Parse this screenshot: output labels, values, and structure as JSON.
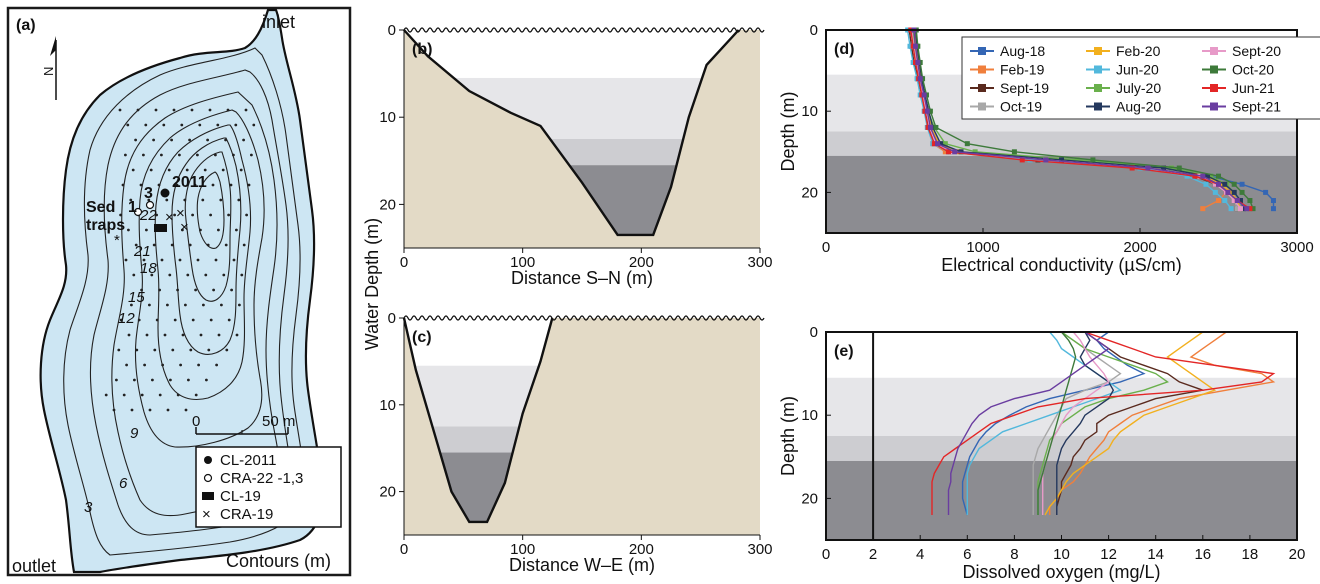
{
  "colors": {
    "lake": "#cde6f3",
    "sediment": "#e3dac6",
    "zone_light": "#e6e6e9",
    "zone_mid": "#cdcdd1",
    "zone_dark": "#8c8c91"
  },
  "panels": {
    "a": {
      "tag": "(a)",
      "inlet": "inlet",
      "outlet": "outlet",
      "contours_label": "Contours (m)",
      "contour_labels": [
        "3",
        "6",
        "9",
        "12",
        "15",
        "18",
        "21",
        "22"
      ],
      "north": "N",
      "scale_zero": "0",
      "scale_label": "50 m",
      "sed_traps_1": "Sed",
      "sed_traps_2": "traps",
      "site_2011": "2011",
      "site_1": "1",
      "site_3": "3",
      "legend": [
        "CL-2011",
        "CRA-22 -1,3",
        "CL-19",
        "CRA-19"
      ]
    },
    "b": {
      "tag": "(b)",
      "xlabel": "Distance S–N (m)",
      "xticks": [
        "0",
        "100",
        "200",
        "300"
      ],
      "yticks": [
        "0",
        "10",
        "20"
      ]
    },
    "c": {
      "tag": "(c)",
      "xlabel": "Distance W–E (m)",
      "xticks": [
        "0",
        "100",
        "200",
        "300"
      ],
      "yticks": [
        "0",
        "10",
        "20"
      ]
    },
    "bc_ylabel": "Water Depth (m)",
    "d": {
      "tag": "(d)",
      "xlabel": "Electrical conductivity (µS/cm)",
      "ylabel": "Depth (m)",
      "xticks": [
        "0",
        "1000",
        "2000",
        "3000"
      ],
      "yticks": [
        "0",
        "10",
        "20"
      ]
    },
    "e": {
      "tag": "(e)",
      "xlabel": "Dissolved oxygen (mg/L)",
      "ylabel": "Depth (m)",
      "xticks": [
        "0",
        "2",
        "4",
        "6",
        "8",
        "10",
        "12",
        "14",
        "16",
        "18",
        "20"
      ],
      "yticks": [
        "0",
        "10",
        "20"
      ]
    }
  },
  "chart_data": [
    {
      "panel": "b",
      "type": "area",
      "x_unit": "m",
      "y_unit": "m",
      "x": [
        0,
        20,
        55,
        90,
        115,
        150,
        180,
        210,
        225,
        240,
        255,
        282
      ],
      "depth": [
        0,
        3,
        7,
        9.5,
        11,
        17.5,
        23.5,
        23.5,
        18,
        10,
        4,
        0
      ],
      "xlim": [
        0,
        300
      ],
      "ylim": [
        0,
        25
      ]
    },
    {
      "panel": "c",
      "type": "area",
      "x_unit": "m",
      "y_unit": "m",
      "x": [
        0,
        10,
        25,
        40,
        55,
        70,
        85,
        100,
        115,
        125
      ],
      "depth": [
        0,
        6,
        13,
        20,
        23.5,
        23.5,
        19,
        11,
        5,
        0
      ],
      "xlim": [
        0,
        300
      ],
      "ylim": [
        0,
        25
      ]
    },
    {
      "panel": "d",
      "type": "line",
      "xlim": [
        0,
        3000
      ],
      "ylim": [
        0,
        25
      ],
      "depth": [
        0,
        2,
        4,
        6,
        8,
        10,
        12,
        14,
        15,
        16,
        17,
        18,
        19,
        20,
        21,
        22
      ],
      "series": [
        {
          "name": "Aug-18",
          "color": "#3466b4",
          "values": [
            560,
            570,
            580,
            600,
            620,
            640,
            660,
            700,
            800,
            1400,
            2100,
            2450,
            2650,
            2800,
            2850,
            2850
          ]
        },
        {
          "name": "Feb-19",
          "color": "#f07f3c",
          "values": [
            550,
            560,
            575,
            590,
            610,
            630,
            650,
            680,
            760,
            1300,
            2050,
            2400,
            2500,
            2550,
            2500,
            2400
          ]
        },
        {
          "name": "Sept-19",
          "color": "#5a2a1e",
          "values": [
            530,
            545,
            560,
            585,
            610,
            635,
            655,
            690,
            790,
            1350,
            2000,
            2350,
            2480,
            2550,
            2600,
            2620
          ]
        },
        {
          "name": "Oct-19",
          "color": "#a8a8a8",
          "values": [
            540,
            555,
            570,
            595,
            615,
            640,
            665,
            700,
            820,
            1450,
            2100,
            2380,
            2500,
            2560,
            2600,
            2620
          ]
        },
        {
          "name": "Feb-20",
          "color": "#f2b01e",
          "values": [
            560,
            575,
            590,
            605,
            625,
            650,
            670,
            720,
            850,
            1500,
            2150,
            2420,
            2520,
            2580,
            2620,
            2640
          ]
        },
        {
          "name": "Jun-20",
          "color": "#52b8dc",
          "values": [
            520,
            535,
            555,
            580,
            600,
            625,
            645,
            680,
            780,
            1300,
            2000,
            2300,
            2420,
            2480,
            2540,
            2580
          ]
        },
        {
          "name": "July-20",
          "color": "#6ab04c",
          "values": [
            550,
            565,
            580,
            600,
            620,
            650,
            690,
            760,
            950,
            1600,
            2200,
            2450,
            2550,
            2600,
            2640,
            2660
          ]
        },
        {
          "name": "Aug-20",
          "color": "#24385e",
          "values": [
            570,
            580,
            595,
            610,
            630,
            655,
            680,
            730,
            860,
            1500,
            2150,
            2430,
            2540,
            2600,
            2640,
            2660
          ]
        },
        {
          "name": "Sept-20",
          "color": "#e79ac8",
          "values": [
            545,
            560,
            575,
            595,
            615,
            640,
            660,
            700,
            800,
            1400,
            2050,
            2380,
            2480,
            2550,
            2600,
            2640
          ]
        },
        {
          "name": "Oct-20",
          "color": "#3d7a3a",
          "values": [
            575,
            585,
            600,
            615,
            640,
            665,
            700,
            900,
            1200,
            1700,
            2250,
            2500,
            2600,
            2650,
            2700,
            2720
          ]
        },
        {
          "name": "Jun-21",
          "color": "#e32626",
          "values": [
            540,
            555,
            570,
            590,
            610,
            630,
            650,
            690,
            780,
            1250,
            1950,
            2350,
            2500,
            2560,
            2620,
            2700
          ]
        },
        {
          "name": "Sept-21",
          "color": "#6a3da0",
          "values": [
            560,
            570,
            585,
            600,
            625,
            645,
            665,
            710,
            820,
            1400,
            2050,
            2400,
            2500,
            2560,
            2620,
            2680
          ]
        }
      ]
    },
    {
      "panel": "e",
      "type": "line",
      "xlim": [
        0,
        20
      ],
      "ylim": [
        0,
        25
      ],
      "reference_x": 2,
      "depth": [
        0,
        1,
        2,
        3,
        4,
        5,
        6,
        7,
        8,
        9,
        10,
        11,
        12,
        13,
        14,
        15,
        16,
        17,
        18,
        19,
        20,
        21,
        22
      ],
      "series": [
        {
          "name": "Aug-18",
          "color": "#3466b4",
          "values": [
            12.0,
            11.5,
            11.8,
            12.3,
            12.8,
            13.5,
            12.5,
            11.0,
            9.5,
            8.5,
            7.8,
            7.2,
            6.8,
            6.5,
            6.3,
            6.1,
            6.0,
            5.9,
            5.8,
            5.8,
            5.8,
            5.9,
            6.0
          ]
        },
        {
          "name": "Feb-19",
          "color": "#f07f3c",
          "values": [
            17.0,
            16.5,
            16.0,
            15.5,
            16.5,
            18.5,
            19.0,
            17.0,
            15.0,
            14.0,
            13.0,
            12.5,
            12.0,
            11.8,
            11.5,
            11.2,
            11.0,
            10.8,
            10.5,
            10.0,
            9.8,
            9.5,
            9.5
          ]
        },
        {
          "name": "Sept-19",
          "color": "#5a2a1e",
          "values": [
            11.0,
            11.5,
            12.0,
            12.5,
            13.5,
            14.5,
            15.0,
            16.0,
            14.0,
            13.0,
            12.0,
            11.5,
            11.5,
            11.0,
            10.8,
            10.5,
            10.4,
            10.2,
            10.0,
            10.0,
            9.9,
            9.8,
            9.8
          ]
        },
        {
          "name": "Oct-19",
          "color": "#a8a8a8",
          "values": [
            10.0,
            10.5,
            11.0,
            11.5,
            12.0,
            12.5,
            12.0,
            11.0,
            10.2,
            10.0,
            9.8,
            9.6,
            9.4,
            9.2,
            9.0,
            8.9,
            8.8,
            8.8,
            8.8,
            8.8,
            8.8,
            8.8,
            8.8
          ]
        },
        {
          "name": "Feb-20",
          "color": "#f2b01e",
          "values": [
            16.0,
            15.5,
            15.0,
            14.5,
            15.0,
            15.5,
            16.0,
            16.5,
            15.5,
            14.5,
            13.5,
            13.0,
            12.5,
            12.2,
            12.0,
            11.5,
            11.0,
            10.5,
            10.2,
            10.0,
            9.8,
            9.5,
            9.3
          ]
        },
        {
          "name": "Jun-20",
          "color": "#52b8dc",
          "values": [
            9.5,
            9.8,
            10.0,
            10.5,
            11.0,
            11.5,
            12.0,
            12.5,
            11.5,
            10.5,
            9.5,
            8.5,
            7.5,
            7.0,
            6.5,
            6.3,
            6.1,
            6.0,
            6.0,
            6.0,
            6.0,
            6.0,
            6.0
          ]
        },
        {
          "name": "July-20",
          "color": "#6ab04c",
          "values": [
            10.0,
            10.5,
            11.0,
            12.0,
            13.0,
            14.0,
            14.5,
            13.5,
            12.0,
            11.0,
            10.5,
            10.0,
            9.8,
            9.5,
            9.4,
            9.3,
            9.2,
            9.1,
            9.0,
            9.0,
            9.0,
            9.0,
            9.0
          ]
        },
        {
          "name": "Aug-20",
          "color": "#24385e",
          "values": [
            11.0,
            11.2,
            11.0,
            10.8,
            11.0,
            11.5,
            12.0,
            12.2,
            12.0,
            11.5,
            11.0,
            10.8,
            10.5,
            10.2,
            10.0,
            9.9,
            9.8,
            9.8,
            9.8,
            9.8,
            9.8,
            9.8,
            9.8
          ]
        },
        {
          "name": "Sept-20",
          "color": "#e79ac8",
          "values": [
            10.5,
            10.8,
            11.0,
            11.2,
            11.5,
            11.8,
            12.0,
            11.5,
            11.0,
            10.5,
            10.2,
            10.0,
            9.8,
            9.6,
            9.5,
            9.4,
            9.3,
            9.2,
            9.2,
            9.2,
            9.2,
            9.2,
            9.2
          ]
        },
        {
          "name": "Oct-20",
          "color": "#3d7a3a",
          "values": [
            10.0,
            10.3,
            10.5,
            10.6,
            10.5,
            10.4,
            10.3,
            10.2,
            10.1,
            10.0,
            9.9,
            9.8,
            9.7,
            9.6,
            9.5,
            9.4,
            9.3,
            9.2,
            9.1,
            9.0,
            9.0,
            9.0,
            9.0
          ]
        },
        {
          "name": "Jun-21",
          "color": "#e32626",
          "values": [
            11.0,
            12.0,
            13.0,
            14.0,
            16.5,
            19.0,
            18.5,
            16.0,
            11.0,
            9.0,
            8.0,
            7.0,
            6.5,
            6.0,
            5.5,
            5.0,
            4.8,
            4.6,
            4.5,
            4.5,
            4.5,
            4.5,
            4.5
          ]
        },
        {
          "name": "Sept-21",
          "color": "#6a3da0",
          "values": [
            11.0,
            11.5,
            12.0,
            11.5,
            11.0,
            10.5,
            10.0,
            9.5,
            8.0,
            7.0,
            6.5,
            6.2,
            6.0,
            5.8,
            5.6,
            5.5,
            5.4,
            5.3,
            5.3,
            5.2,
            5.2,
            5.2,
            5.2
          ]
        }
      ]
    }
  ]
}
